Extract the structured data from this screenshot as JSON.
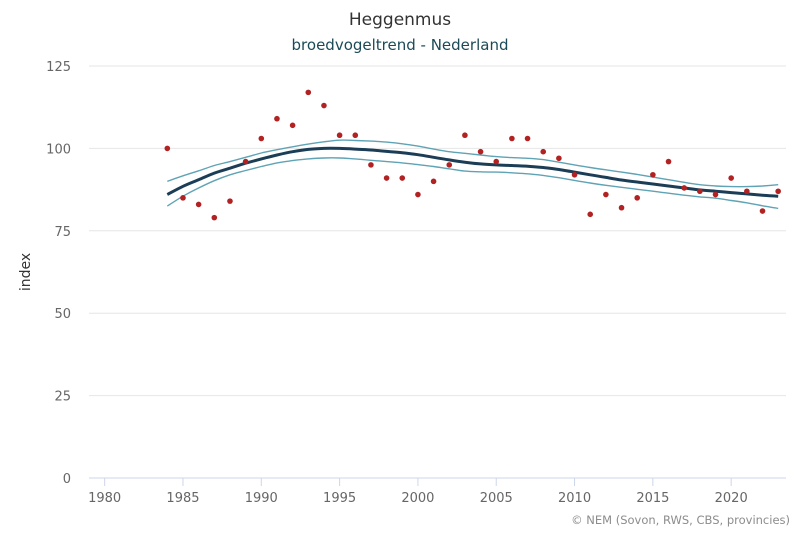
{
  "chart_data": {
    "type": "line",
    "title": "Heggenmus",
    "subtitle": "broedvogeltrend - Nederland",
    "xlabel": "",
    "ylabel": "index",
    "xlim": [
      1979,
      2023.5
    ],
    "ylim": [
      0,
      125
    ],
    "x_ticks": [
      1980,
      1985,
      1990,
      1995,
      2000,
      2005,
      2010,
      2015,
      2020
    ],
    "y_ticks": [
      0,
      25,
      50,
      75,
      100,
      125
    ],
    "grid": "horizontal",
    "colors": {
      "points": "#b22222",
      "trend": "#1b3d56",
      "band": "#5fa3b5",
      "grid": "#e6e6e6",
      "axis": "#ccd6eb"
    },
    "series": [
      {
        "kind": "scatter",
        "x": [
          1984,
          1985,
          1986,
          1987,
          1988,
          1989,
          1990,
          1991,
          1992,
          1993,
          1994,
          1995,
          1996,
          1997,
          1998,
          1999,
          2000,
          2001,
          2002,
          2003,
          2004,
          2005,
          2006,
          2007,
          2008,
          2009,
          2010,
          2011,
          2012,
          2013,
          2014,
          2015,
          2016,
          2017,
          2018,
          2019,
          2020,
          2021,
          2022,
          2023
        ],
        "values": [
          100,
          85,
          83,
          79,
          84,
          96,
          103,
          109,
          107,
          117,
          113,
          104,
          104,
          95,
          91,
          91,
          86,
          90,
          95,
          104,
          99,
          96,
          103,
          103,
          99,
          97,
          92,
          80,
          86,
          82,
          85,
          92,
          96,
          88,
          87,
          86,
          91,
          87,
          81,
          87
        ]
      },
      {
        "kind": "trend",
        "x": [
          1984,
          1985,
          1986,
          1987,
          1988,
          1989,
          1990,
          1991,
          1992,
          1993,
          1994,
          1995,
          1996,
          1997,
          1998,
          1999,
          2000,
          2001,
          2002,
          2003,
          2004,
          2005,
          2006,
          2007,
          2008,
          2009,
          2010,
          2011,
          2012,
          2013,
          2014,
          2015,
          2016,
          2017,
          2018,
          2019,
          2020,
          2021,
          2022,
          2023
        ],
        "values": [
          86,
          88.5,
          90.5,
          92.5,
          94,
          95.5,
          96.8,
          98,
          99,
          99.7,
          100,
          100,
          99.8,
          99.5,
          99.1,
          98.7,
          98.1,
          97.3,
          96.5,
          95.8,
          95.3,
          95,
          94.8,
          94.6,
          94.2,
          93.6,
          92.8,
          92,
          91.2,
          90.4,
          89.8,
          89.2,
          88.6,
          88,
          87.4,
          87,
          86.6,
          86.2,
          85.8,
          85.5
        ]
      },
      {
        "kind": "upper",
        "x": [
          1984,
          1985,
          1986,
          1987,
          1988,
          1989,
          1990,
          1991,
          1992,
          1993,
          1994,
          1995,
          1996,
          1997,
          1998,
          1999,
          2000,
          2001,
          2002,
          2003,
          2004,
          2005,
          2006,
          2007,
          2008,
          2009,
          2010,
          2011,
          2012,
          2013,
          2014,
          2015,
          2016,
          2017,
          2018,
          2019,
          2020,
          2021,
          2022,
          2023
        ],
        "values": [
          90,
          91.7,
          93.2,
          94.8,
          96,
          97.3,
          98.6,
          99.6,
          100.5,
          101.3,
          102,
          102.5,
          102.4,
          102.2,
          101.9,
          101.4,
          100.7,
          99.8,
          99,
          98.5,
          98,
          97.5,
          97.2,
          97,
          96.6,
          95.8,
          95,
          94.2,
          93.5,
          92.8,
          92.1,
          91.3,
          90.5,
          89.7,
          89,
          88.6,
          88.4,
          88.4,
          88.6,
          89
        ]
      },
      {
        "kind": "lower",
        "x": [
          1984,
          1985,
          1986,
          1987,
          1988,
          1989,
          1990,
          1991,
          1992,
          1993,
          1994,
          1995,
          1996,
          1997,
          1998,
          1999,
          2000,
          2001,
          2002,
          2003,
          2004,
          2005,
          2006,
          2007,
          2008,
          2009,
          2010,
          2011,
          2012,
          2013,
          2014,
          2015,
          2016,
          2017,
          2018,
          2019,
          2020,
          2021,
          2022,
          2023
        ],
        "values": [
          82.5,
          85.5,
          88,
          90.2,
          92,
          93.3,
          94.5,
          95.6,
          96.3,
          96.8,
          97.1,
          97.1,
          96.8,
          96.4,
          96,
          95.6,
          95.1,
          94.5,
          93.8,
          93.1,
          92.9,
          92.8,
          92.6,
          92.3,
          91.8,
          91.1,
          90.3,
          89.5,
          88.8,
          88.2,
          87.6,
          87,
          86.4,
          85.8,
          85.3,
          84.9,
          84.2,
          83.5,
          82.6,
          81.8
        ]
      }
    ],
    "credits": "© NEM (Sovon, RWS, CBS, provincies)"
  }
}
